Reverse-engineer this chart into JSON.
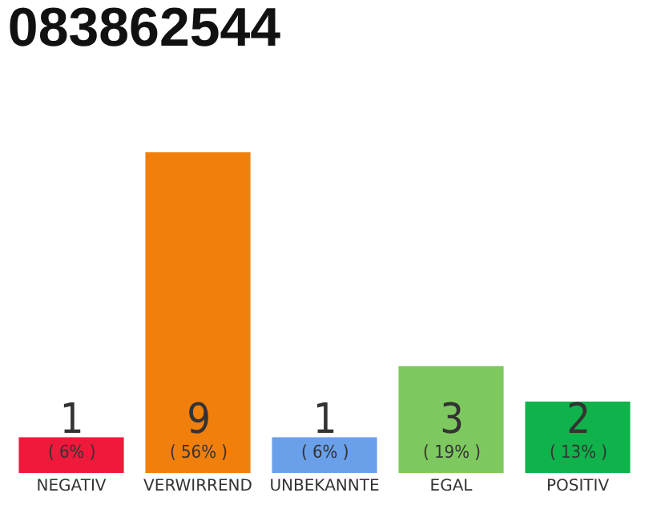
{
  "chart_data": {
    "type": "bar",
    "title": "083862544",
    "categories": [
      "NEGATIV",
      "VERWIRREND",
      "UNBEKANNTE",
      "EGAL",
      "POSITIV"
    ],
    "values": [
      1,
      9,
      1,
      3,
      2
    ],
    "colors": [
      "#f0193c",
      "#f07f0c",
      "#6a9fea",
      "#7dc95f",
      "#10b24b"
    ],
    "value_labels": [
      "1\n( 6% )",
      "9\n( 56% )",
      "1\n( 6% )",
      "3\n( 19% )",
      "2\n( 13% )"
    ],
    "data_labels": false
  }
}
